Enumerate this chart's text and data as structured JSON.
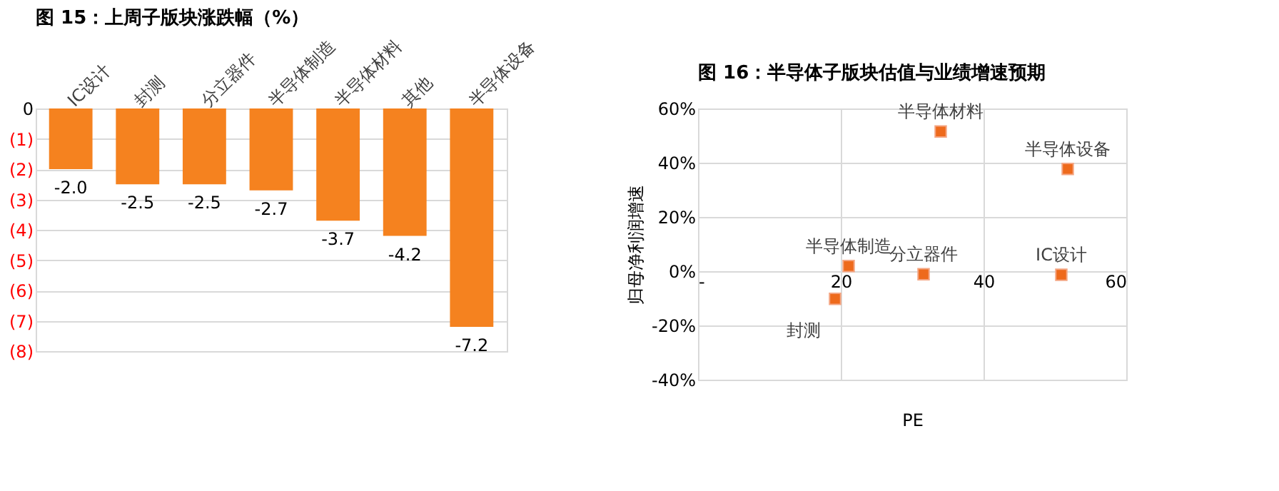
{
  "chart_data": [
    {
      "type": "bar",
      "title": "图 15：上周子版块涨跌幅（%）",
      "categories": [
        "IC设计",
        "封测",
        "分立器件",
        "半导体制造",
        "半导体材料",
        "其他",
        "半导体设备"
      ],
      "values": [
        -2.0,
        -2.5,
        -2.5,
        -2.7,
        -3.7,
        -4.2,
        -7.2
      ],
      "color": "#f5821f",
      "ylim": [
        -8,
        0
      ],
      "yticks": [
        {
          "value": -8,
          "label": "(8)"
        },
        {
          "value": -7,
          "label": "(7)"
        },
        {
          "value": -6,
          "label": "(6)"
        },
        {
          "value": -5,
          "label": "(5)"
        },
        {
          "value": -4,
          "label": "(4)"
        },
        {
          "value": -3,
          "label": "(3)"
        },
        {
          "value": -2,
          "label": "(2)"
        },
        {
          "value": -1,
          "label": "(1)"
        },
        0
      ],
      "grid": "y",
      "value_labels": [
        "-2.0",
        "-2.5",
        "-2.5",
        "-2.7",
        "-3.7",
        "-4.2",
        "-7.2"
      ]
    },
    {
      "type": "scatter",
      "title": "图 16：半导体子版块估值与业绩增速预期",
      "xlabel": "PE",
      "ylabel": "归母净利润增速",
      "series": [
        {
          "color": "#ee6a1c",
          "x": [
            34.0,
            51.8,
            21.1,
            31.6,
            50.9,
            19.2
          ],
          "values": [
            51.5,
            37.7,
            1.9,
            -1.1,
            -1.3,
            -10.2
          ]
        }
      ],
      "xlim": [
        0,
        60
      ],
      "xticks": [
        {
          "value": 0,
          "label": "-"
        },
        20,
        40,
        60
      ],
      "ylim": [
        -40,
        60
      ],
      "yticks": [
        {
          "value": -40,
          "label": "-40%"
        },
        {
          "value": -20,
          "label": "-20%"
        },
        {
          "value": 0,
          "label": "0%"
        },
        {
          "value": 20,
          "label": "20%"
        },
        {
          "value": 40,
          "label": "40%"
        },
        {
          "value": 60,
          "label": "60%"
        }
      ],
      "annotations": [
        {
          "text": "半导体材料",
          "x": 34.0,
          "y": 51.5
        },
        {
          "text": "半导体设备",
          "x": 51.8,
          "y": 37.7
        },
        {
          "text": "半导体制造",
          "x": 21.1,
          "y": 1.9
        },
        {
          "text": "分立器件",
          "x": 31.6,
          "y": -1.1
        },
        {
          "text": "IC设计",
          "x": 50.9,
          "y": -1.3
        },
        {
          "text": "封测",
          "x": 19.2,
          "y": -10.2
        }
      ],
      "grid": true,
      "marker": "square"
    }
  ]
}
